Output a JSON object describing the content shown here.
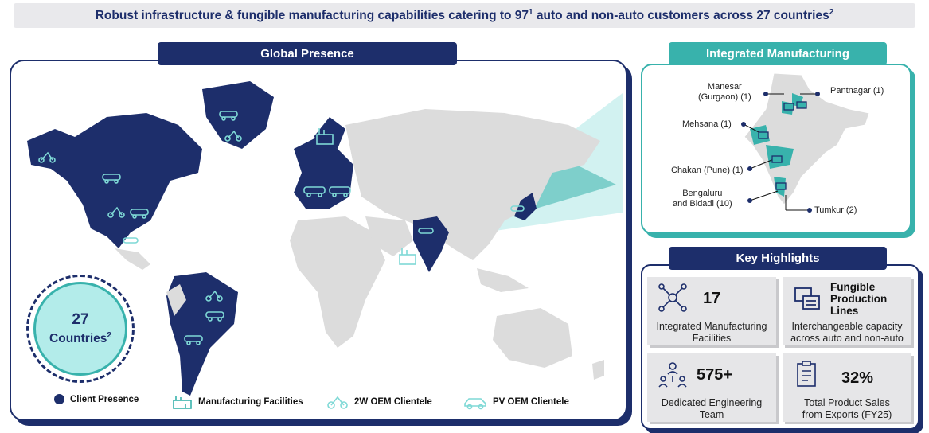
{
  "banner": {
    "text": "Robust infrastructure & fungible manufacturing capabilities catering to 97",
    "sup1": "1",
    "text2": " auto and non-auto customers across 27 countries",
    "sup2": "2"
  },
  "global": {
    "title": "Global Presence",
    "badge": {
      "number": "27",
      "label": "Countries",
      "sup": "2"
    },
    "legend": [
      {
        "label": "Client Presence",
        "icon": "circle-dot-icon"
      },
      {
        "label": "Manufacturing Facilities",
        "icon": "factory-icon"
      },
      {
        "label": "2W OEM Clientele",
        "icon": "scooter-icon"
      },
      {
        "label": "PV OEM Clientele",
        "icon": "car-icon"
      }
    ]
  },
  "integrated": {
    "title": "Integrated Manufacturing",
    "cities": {
      "manesar": {
        "line1": "Manesar",
        "line2": "(Gurgaon) (1)"
      },
      "pantnagar": "Pantnagar (1)",
      "mehsana": "Mehsana (1)",
      "chakan": "Chakan (Pune) (1)",
      "bengaluru": {
        "line1": "Bengaluru",
        "line2": "and Bidadi (10)"
      },
      "tumkur": "Tumkur (2)"
    }
  },
  "highlights": {
    "title": "Key Highlights",
    "tiles": [
      {
        "value": "17",
        "label1": "Integrated Manufacturing",
        "label2": "Facilities",
        "icon": "network-icon"
      },
      {
        "title1": "Fungible",
        "title2": "Production",
        "title3": "Lines",
        "label1": "Interchangeable capacity",
        "label2": "across auto and non-auto",
        "icon": "production-lines-icon"
      },
      {
        "value": "575+",
        "label1": "Dedicated Engineering",
        "label2": "Team",
        "icon": "engineering-team-icon"
      },
      {
        "value": "32%",
        "label1": "Total Product Sales",
        "label2": "from Exports (FY25)",
        "icon": "clipboard-icon"
      }
    ]
  },
  "colors": {
    "navy": "#1d2e6b",
    "teal": "#38b2ac",
    "land": "#dcdcdc",
    "light_teal": "#7fd9d6"
  }
}
